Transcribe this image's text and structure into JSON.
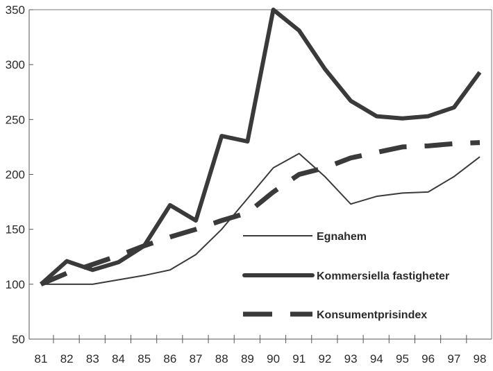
{
  "chart_data": {
    "type": "line",
    "title": "",
    "xlabel": "",
    "ylabel": "",
    "x": [
      "81",
      "82",
      "83",
      "84",
      "85",
      "86",
      "87",
      "88",
      "89",
      "90",
      "91",
      "92",
      "93",
      "94",
      "95",
      "96",
      "97",
      "98"
    ],
    "ylim": [
      50,
      350
    ],
    "yticks": [
      "50",
      "100",
      "150",
      "200",
      "250",
      "300",
      "350"
    ],
    "grid": false,
    "legend_position": "center-right",
    "series": [
      {
        "name": "Egnahem",
        "style": "thin-solid",
        "values": [
          100,
          100,
          100,
          104,
          108,
          113,
          127,
          150,
          178,
          206,
          219,
          198,
          173,
          180,
          183,
          184,
          198,
          216
        ]
      },
      {
        "name": "Kommersiella fastigheter",
        "style": "thick-solid",
        "values": [
          100,
          121,
          113,
          120,
          135,
          172,
          158,
          235,
          230,
          350,
          331,
          296,
          267,
          253,
          251,
          253,
          261,
          293
        ]
      },
      {
        "name": "Konsumentprisindex",
        "style": "thick-dashed",
        "values": [
          100,
          110,
          118,
          126,
          135,
          143,
          150,
          158,
          165,
          184,
          200,
          206,
          215,
          220,
          225,
          226,
          228,
          229
        ]
      }
    ],
    "line_color": "#3a3a3a"
  }
}
